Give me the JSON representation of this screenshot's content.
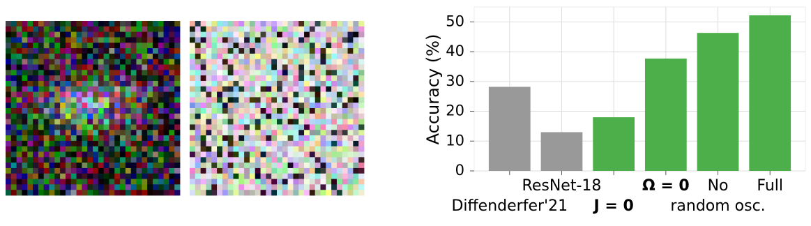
{
  "chart_data": {
    "type": "bar",
    "ylabel": "Accuracy (%)",
    "categories": [
      [
        "Diffenderfer'21"
      ],
      [
        "ResNet-18"
      ],
      [
        "J = 0"
      ],
      [
        "Ω = 0"
      ],
      [
        "No",
        "random osc."
      ],
      [
        "Full"
      ]
    ],
    "bold_categories": [
      2,
      3
    ],
    "values": [
      28.2,
      13,
      18,
      37.7,
      46.3,
      52.2
    ],
    "colors": [
      "#999999",
      "#999999",
      "#4daf4a",
      "#4daf4a",
      "#4daf4a",
      "#4daf4a"
    ],
    "ylim": [
      0,
      55
    ],
    "yticks": [
      0,
      10,
      20,
      30,
      40,
      50
    ],
    "grid": true
  }
}
